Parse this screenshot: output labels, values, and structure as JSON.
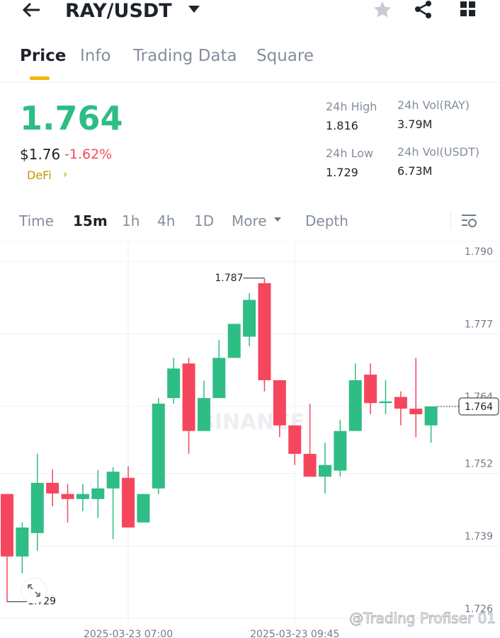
{
  "header": {
    "pair": "RAY/USDT"
  },
  "tabs": [
    "Price",
    "Info",
    "Trading Data",
    "Square"
  ],
  "price": {
    "last": "1.764",
    "usd": "$1.76",
    "change": "-1.62%",
    "tag": "DeFi"
  },
  "stats": [
    {
      "label": "24h High",
      "value": "1.816"
    },
    {
      "label": "24h Vol(RAY)",
      "value": "3.79M"
    },
    {
      "label": "24h Low",
      "value": "1.729"
    },
    {
      "label": "24h Vol(USDT)",
      "value": "6.73M"
    }
  ],
  "intervals": [
    "Time",
    "15m",
    "1h",
    "4h",
    "1D",
    "More",
    "Depth"
  ],
  "watermark": "BINANCE",
  "credit": "@Trading Profiser 01",
  "chart_data": {
    "type": "candlestick",
    "categories": [
      null,
      null,
      null,
      null,
      null,
      null,
      null,
      null,
      "2025-03-23 07:00",
      null,
      null,
      null,
      null,
      null,
      null,
      null,
      null,
      null,
      null,
      "2025-03-23 09:45",
      null,
      null,
      null,
      null,
      null,
      null,
      null,
      null,
      null
    ],
    "open": [
      1.7483,
      1.7371,
      1.7413,
      1.7503,
      1.7483,
      1.7474,
      1.7474,
      1.7493,
      1.7512,
      1.7432,
      1.7493,
      1.7655,
      1.7717,
      1.7596,
      1.7655,
      1.7727,
      1.7765,
      1.7861,
      1.7687,
      1.7606,
      1.7555,
      1.7514,
      1.7525,
      1.7596,
      1.7697,
      1.7646,
      1.7657,
      1.7636,
      1.7606
    ],
    "high": [
      1.7483,
      1.7432,
      1.7555,
      1.7527,
      1.7501,
      1.7501,
      1.7526,
      1.7531,
      1.7533,
      1.7483,
      1.7655,
      1.7727,
      1.7727,
      1.7686,
      1.7759,
      1.7788,
      1.7843,
      1.787,
      1.7687,
      1.7606,
      1.7645,
      1.7575,
      1.7616,
      1.7717,
      1.7717,
      1.7687,
      1.7667,
      1.7727,
      1.7636
    ],
    "low": [
      1.729,
      1.7341,
      1.7381,
      1.7461,
      1.7432,
      1.7452,
      1.744,
      1.7402,
      1.7423,
      1.7432,
      1.7483,
      1.7645,
      1.7555,
      1.7596,
      1.7655,
      1.7727,
      1.7748,
      1.7667,
      1.7585,
      1.7535,
      1.7514,
      1.7484,
      1.7514,
      1.7596,
      1.7626,
      1.7626,
      1.7606,
      1.7585,
      1.7575
    ],
    "close": [
      1.7371,
      1.7423,
      1.7503,
      1.7484,
      1.7474,
      1.7483,
      1.7493,
      1.7523,
      1.7423,
      1.7483,
      1.7645,
      1.7708,
      1.7596,
      1.7655,
      1.7727,
      1.7788,
      1.7831,
      1.7687,
      1.7606,
      1.7555,
      1.7514,
      1.7535,
      1.7596,
      1.7687,
      1.7646,
      1.7649,
      1.7636,
      1.7626,
      1.764
    ],
    "up_color": "#2ebd85",
    "down_color": "#f6465d",
    "ylim": [
      1.7249,
      1.7937
    ],
    "yticks": [
      {
        "value": 1.79,
        "label": "1.790"
      },
      1.777,
      1.764,
      1.752,
      1.739,
      1.726
    ],
    "grid": true
  }
}
